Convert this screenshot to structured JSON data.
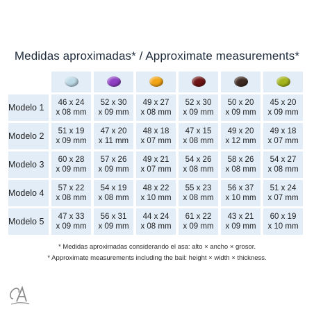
{
  "title": "Medidas aproximadas* / Approximate measurements*",
  "stones": [
    {
      "icon": "aquamarine-gem-icon",
      "color": "#bcd9e6"
    },
    {
      "icon": "amethyst-gem-icon",
      "color": "#8e3fc4"
    },
    {
      "icon": "citrine-gem-icon",
      "color": "#f2a515"
    },
    {
      "icon": "garnet-gem-icon",
      "color": "#6e1414"
    },
    {
      "icon": "smoky-quartz-gem-icon",
      "color": "#3e2a22"
    },
    {
      "icon": "peridot-gem-icon",
      "color": "#a3b51a"
    }
  ],
  "rows": [
    {
      "label": "Modelo 1",
      "cells": [
        [
          "46 x 24",
          "x 08 mm"
        ],
        [
          "52 x 30",
          "x 09 mm"
        ],
        [
          "49 x 27",
          "x 08 mm"
        ],
        [
          "52 x 30",
          "x 09 mm"
        ],
        [
          "50 x 20",
          "x 09 mm"
        ],
        [
          "45 x 20",
          "x 09 mm"
        ]
      ]
    },
    {
      "label": "Modelo 2",
      "cells": [
        [
          "51 x 19",
          "x 09 mm"
        ],
        [
          "47 x 20",
          "x 11 mm"
        ],
        [
          "48 x 18",
          "x 07 mm"
        ],
        [
          "47 x 15",
          "x 08 mm"
        ],
        [
          "49 x 20",
          "x 12 mm"
        ],
        [
          "49 x 18",
          "x 07 mm"
        ]
      ]
    },
    {
      "label": "Modelo 3",
      "cells": [
        [
          "60 x 28",
          "x 09 mm"
        ],
        [
          "57 x 26",
          "x 09 mm"
        ],
        [
          "49 x 21",
          "x 07 mm"
        ],
        [
          "54 x 26",
          "x 08 mm"
        ],
        [
          "58 x 26",
          "x 08 mm"
        ],
        [
          "54 x 27",
          "x 08 mm"
        ]
      ]
    },
    {
      "label": "Modelo 4",
      "cells": [
        [
          "57 x 22",
          "x 08 mm"
        ],
        [
          "54 x 19",
          "x 08 mm"
        ],
        [
          "48 x 22",
          "x 10 mm"
        ],
        [
          "55 x 23",
          "x 08 mm"
        ],
        [
          "56 x 37",
          "x 10 mm"
        ],
        [
          "51 x 24",
          "x 07 mm"
        ]
      ]
    },
    {
      "label": "Modelo 5",
      "cells": [
        [
          "47 x 33",
          "x 09 mm"
        ],
        [
          "56 x 31",
          "x 09 mm"
        ],
        [
          "44 x 24",
          "x 08 mm"
        ],
        [
          "61 x 22",
          "x 09 mm"
        ],
        [
          "43 x 21",
          "x 09 mm"
        ],
        [
          "60 x 19",
          "x 10 mm"
        ]
      ]
    }
  ],
  "notes": {
    "es": "* Medidas aproximadas considerando el asa: alto × ancho × grosor.",
    "en": "* Approximate measurements including the bail: height × width × thickness."
  },
  "logo": {
    "icon": "brand-monogram-logo",
    "color": "#8a8a8a"
  }
}
